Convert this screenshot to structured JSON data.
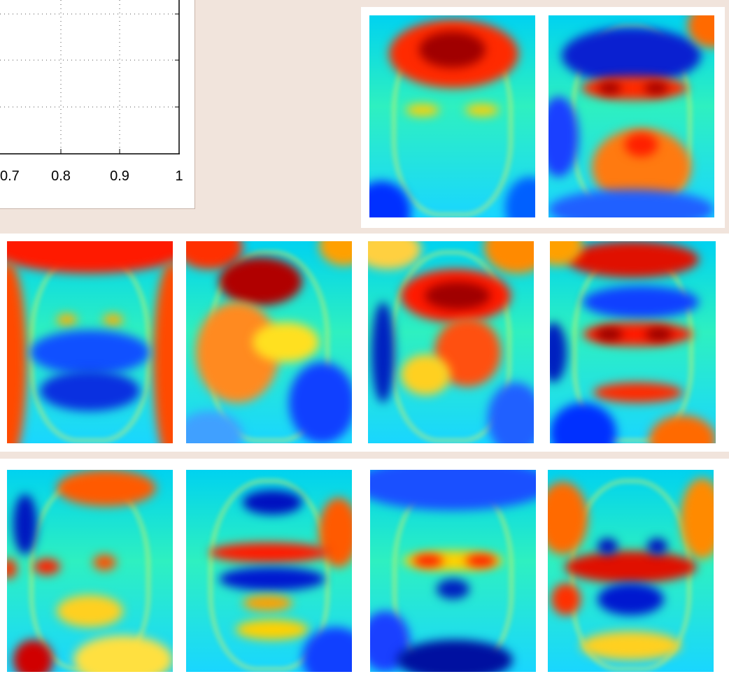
{
  "plot": {
    "x_ticks": [
      "0.7",
      "0.8",
      "0.9",
      "1"
    ]
  },
  "colors": {
    "background": "#f1e4dc",
    "panel": "#ffffff",
    "colormap": "jet"
  },
  "faces": [
    {
      "row": 1,
      "col": 1
    },
    {
      "row": 1,
      "col": 2
    },
    {
      "row": 2,
      "col": 1
    },
    {
      "row": 2,
      "col": 2
    },
    {
      "row": 2,
      "col": 3
    },
    {
      "row": 2,
      "col": 4
    },
    {
      "row": 3,
      "col": 1
    },
    {
      "row": 3,
      "col": 2
    },
    {
      "row": 3,
      "col": 3
    },
    {
      "row": 3,
      "col": 4
    }
  ]
}
